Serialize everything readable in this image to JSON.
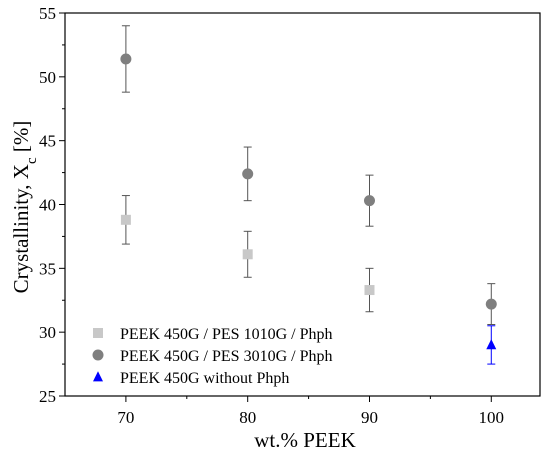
{
  "chart_data": {
    "type": "scatter",
    "xlabel": "wt.% PEEK",
    "ylabel": {
      "main": "Crystallinity, X",
      "subscript": "c",
      "unit": " [%]"
    },
    "xlim": [
      65,
      104
    ],
    "ylim": [
      25,
      55
    ],
    "xticks": [
      70,
      80,
      90,
      100
    ],
    "yticks": [
      25,
      30,
      35,
      40,
      45,
      50,
      55
    ],
    "grid": false,
    "legend_position": "bottom-left",
    "series": [
      {
        "name": "PEEK 450G / PES 1010G / Phph",
        "marker": "square",
        "color": "#c8c8c8",
        "error_color": "#555555",
        "points": [
          {
            "x": 70,
            "y": 38.8,
            "err": 1.9
          },
          {
            "x": 80,
            "y": 36.1,
            "err": 1.8
          },
          {
            "x": 90,
            "y": 33.3,
            "err": 1.7
          }
        ]
      },
      {
        "name": "PEEK 450G / PES 3010G / Phph",
        "marker": "circle",
        "color": "#7f7f7f",
        "error_color": "#555555",
        "points": [
          {
            "x": 70,
            "y": 51.4,
            "err": 2.6
          },
          {
            "x": 80,
            "y": 42.4,
            "err": 2.1
          },
          {
            "x": 90,
            "y": 40.3,
            "err": 2.0
          },
          {
            "x": 100,
            "y": 32.2,
            "err": 1.6
          }
        ]
      },
      {
        "name": "PEEK 450G without Phph",
        "marker": "triangle",
        "color": "#0000ff",
        "error_color": "#0000ff",
        "points": [
          {
            "x": 100,
            "y": 29.0,
            "err": 1.5
          }
        ]
      }
    ]
  }
}
